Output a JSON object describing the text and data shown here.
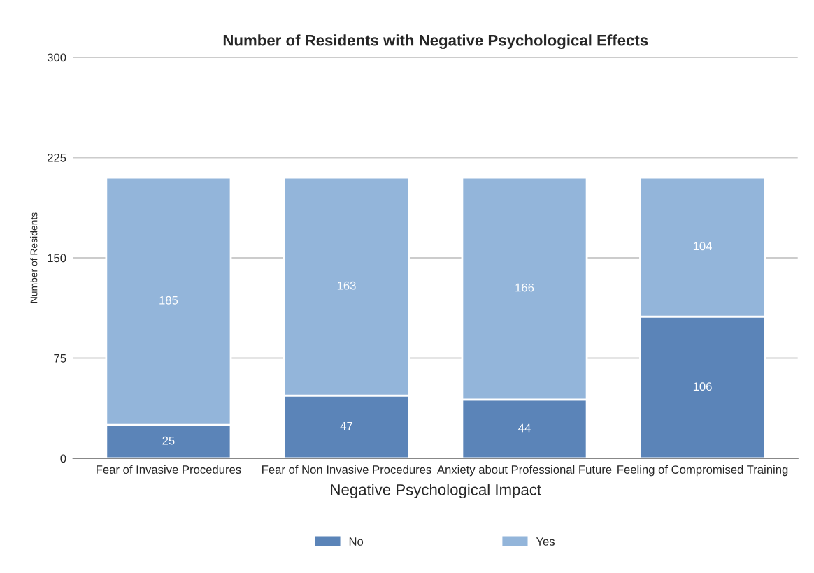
{
  "chart_data": {
    "type": "bar",
    "stacked": true,
    "title": "Number of Residents with Negative Psychological Effects",
    "xlabel": "Negative Psychological Impact",
    "ylabel": "Number of Residents",
    "categories": [
      "Fear of Invasive Procedures",
      "Fear of Non Invasive Procedures",
      "Anxiety about Professional Future",
      "Feeling of Compromised Training"
    ],
    "series": [
      {
        "name": "No",
        "color": "#5b84b8",
        "values": [
          25,
          47,
          44,
          106
        ]
      },
      {
        "name": "Yes",
        "color": "#93b5da",
        "values": [
          185,
          163,
          166,
          104
        ]
      }
    ],
    "ylim": [
      0,
      300
    ],
    "yticks": [
      0,
      75,
      150,
      225,
      300
    ],
    "grid": "y",
    "legend": "bottom",
    "data_labels": true
  }
}
